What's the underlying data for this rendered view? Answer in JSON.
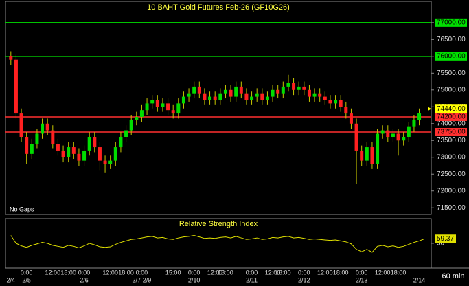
{
  "chart_data": [
    {
      "type": "candlestick",
      "title": "10 BAHT Gold Futures Feb-26 (GF10G26)",
      "annotation": "No Gaps",
      "interval": "60 min",
      "categories": [
        null,
        null,
        null,
        "0:00",
        null,
        null,
        null,
        null,
        "12:00",
        null,
        null,
        "18:00",
        null,
        null,
        "0:00",
        null,
        null,
        null,
        null,
        "12:00",
        null,
        null,
        "18:00",
        null,
        null,
        "0:00",
        null,
        null,
        null,
        null,
        null,
        "15:00",
        null,
        null,
        null,
        "0:00",
        null,
        null,
        null,
        "12:00",
        null,
        "18:00",
        null,
        null,
        null,
        null,
        "0:00",
        null,
        null,
        null,
        "12:00",
        null,
        "18:00",
        null,
        null,
        null,
        "0:00",
        null,
        null,
        null,
        "12:00",
        null,
        null,
        "18:00",
        null,
        null,
        null,
        "0:00",
        null,
        null,
        null,
        "12:00",
        null,
        null,
        "18:00",
        null,
        null,
        null,
        null
      ],
      "dates": [
        "2/4",
        null,
        null,
        "2/5",
        null,
        null,
        null,
        null,
        null,
        null,
        null,
        null,
        null,
        null,
        "2/6",
        null,
        null,
        null,
        null,
        null,
        null,
        null,
        null,
        null,
        "2/7",
        null,
        "2/9",
        null,
        null,
        null,
        null,
        null,
        null,
        null,
        null,
        "2/10",
        null,
        null,
        null,
        null,
        null,
        null,
        null,
        null,
        null,
        null,
        "2/11",
        null,
        null,
        null,
        null,
        null,
        null,
        null,
        null,
        null,
        "2/12",
        null,
        null,
        null,
        null,
        null,
        null,
        null,
        null,
        null,
        null,
        "2/13",
        null,
        null,
        null,
        null,
        null,
        null,
        null,
        null,
        null,
        null,
        "2/14",
        null
      ],
      "open": [
        76000,
        75900,
        74300,
        73600,
        73100,
        73400,
        73700,
        74000,
        73800,
        73400,
        73200,
        73000,
        73300,
        73100,
        72900,
        73200,
        73600,
        73300,
        72900,
        72800,
        72900,
        73300,
        73600,
        73800,
        74100,
        74200,
        74400,
        74600,
        74700,
        74500,
        74600,
        74400,
        74300,
        74600,
        74800,
        74900,
        75100,
        74900,
        74700,
        74800,
        74700,
        74900,
        75000,
        74800,
        75100,
        74900,
        74700,
        74800,
        74900,
        74700,
        74800,
        75000,
        74900,
        75100,
        75200,
        75000,
        75100,
        75000,
        74800,
        74900,
        74800,
        74700,
        74600,
        74700,
        74500,
        74300,
        74000,
        73200,
        72900,
        73300,
        72800,
        73700,
        73800,
        73600,
        73700,
        73500,
        73600,
        73900,
        74100,
        74300
      ],
      "high": [
        76150,
        76050,
        74450,
        73750,
        73550,
        73850,
        74150,
        74150,
        73950,
        73550,
        73350,
        73450,
        73450,
        73250,
        73350,
        73750,
        73750,
        73450,
        73050,
        73050,
        73450,
        73750,
        73950,
        74250,
        74350,
        74550,
        74750,
        74850,
        74850,
        74750,
        74750,
        74550,
        74750,
        74950,
        75050,
        75250,
        75250,
        75050,
        74950,
        74950,
        75050,
        75150,
        75150,
        75250,
        75250,
        75050,
        74950,
        75050,
        75050,
        74950,
        75150,
        75150,
        75250,
        75450,
        75350,
        75250,
        75250,
        75150,
        75050,
        75050,
        74950,
        74850,
        74850,
        74850,
        74650,
        74450,
        74150,
        73350,
        73450,
        73450,
        73850,
        73950,
        73950,
        73850,
        73850,
        73750,
        74050,
        74250,
        74450,
        74500
      ],
      "low": [
        75750,
        74150,
        73450,
        72800,
        72950,
        73250,
        73550,
        73650,
        73250,
        73050,
        72850,
        72850,
        72950,
        72750,
        72750,
        73050,
        73150,
        72600,
        72550,
        72650,
        72750,
        73150,
        73450,
        73650,
        73950,
        74050,
        74250,
        74450,
        74350,
        74350,
        74250,
        74150,
        74150,
        74450,
        74650,
        74750,
        74750,
        74550,
        74550,
        74550,
        74550,
        74750,
        74650,
        74650,
        74750,
        74550,
        74550,
        74650,
        74550,
        74550,
        74650,
        74750,
        74750,
        74950,
        74850,
        74850,
        74850,
        74650,
        74650,
        74650,
        74550,
        74450,
        74450,
        74350,
        74150,
        73850,
        72200,
        72750,
        72750,
        72650,
        72650,
        73550,
        73450,
        73450,
        73050,
        73350,
        73450,
        73750,
        73950,
        74150
      ],
      "close": [
        75900,
        74300,
        73600,
        73100,
        73400,
        73700,
        74000,
        73800,
        73400,
        73200,
        73000,
        73300,
        73100,
        72900,
        73200,
        73600,
        73300,
        72900,
        72800,
        72900,
        73300,
        73600,
        73800,
        74100,
        74200,
        74400,
        74600,
        74700,
        74500,
        74600,
        74400,
        74300,
        74600,
        74800,
        74900,
        75100,
        74900,
        74700,
        74800,
        74700,
        74900,
        75000,
        74800,
        75100,
        74900,
        74700,
        74800,
        74900,
        74700,
        74800,
        75000,
        74900,
        75100,
        75200,
        75000,
        75100,
        75000,
        74800,
        74900,
        74800,
        74700,
        74600,
        74700,
        74500,
        74300,
        74000,
        73200,
        72900,
        73300,
        72800,
        73700,
        73800,
        73600,
        73700,
        73500,
        73600,
        73900,
        74100,
        74300,
        74440
      ],
      "up_color": "#00dd00",
      "down_color": "#ff2020",
      "wick_color": "#c8c800",
      "ylim": [
        71300,
        77630
      ],
      "yticks": [
        {
          "value": 71500,
          "label": "71500.00"
        },
        {
          "value": 72000,
          "label": "72000.00"
        },
        {
          "value": 72500,
          "label": "72500.00"
        },
        {
          "value": 73000,
          "label": "73000.00"
        },
        {
          "value": 73500,
          "label": "73500.00"
        },
        {
          "value": 74000,
          "label": "74000.00"
        },
        {
          "value": 74500,
          "label": "74500.00"
        },
        {
          "value": 75000,
          "label": "75000.00"
        },
        {
          "value": 75500,
          "label": "75500.00"
        },
        {
          "value": 76000,
          "label": "76000.00"
        },
        {
          "value": 76500,
          "label": "76500.00"
        },
        {
          "value": 77000,
          "label": "77000.00"
        }
      ],
      "hlines": [
        {
          "value": 77000,
          "label": "77000.00",
          "color": "#00e000"
        },
        {
          "value": 76000,
          "label": "76000.00",
          "color": "#00e000"
        },
        {
          "value": 74200,
          "label": "74200.00",
          "color": "#ff3030"
        },
        {
          "value": 73750,
          "label": "73750.00",
          "color": "#ff3030"
        }
      ],
      "last_price": {
        "value": 74440,
        "label": "74440.00",
        "color": "#ffff00"
      }
    },
    {
      "type": "line",
      "title": "Relative Strength Index",
      "color": "#e0e000",
      "values": [
        66,
        50,
        45,
        42,
        46,
        49,
        52,
        50,
        46,
        44,
        42,
        46,
        44,
        41,
        45,
        50,
        47,
        43,
        42,
        43,
        48,
        52,
        55,
        58,
        59,
        61,
        63,
        64,
        61,
        62,
        59,
        58,
        61,
        63,
        64,
        66,
        63,
        60,
        61,
        60,
        62,
        63,
        61,
        64,
        61,
        58,
        59,
        61,
        58,
        59,
        62,
        61,
        63,
        64,
        61,
        62,
        60,
        58,
        59,
        58,
        57,
        56,
        57,
        55,
        53,
        49,
        38,
        33,
        38,
        32,
        44,
        46,
        43,
        45,
        42,
        44,
        48,
        52,
        55,
        59.37
      ],
      "ylim": [
        0,
        100
      ],
      "yticks": [
        50
      ]
    }
  ]
}
